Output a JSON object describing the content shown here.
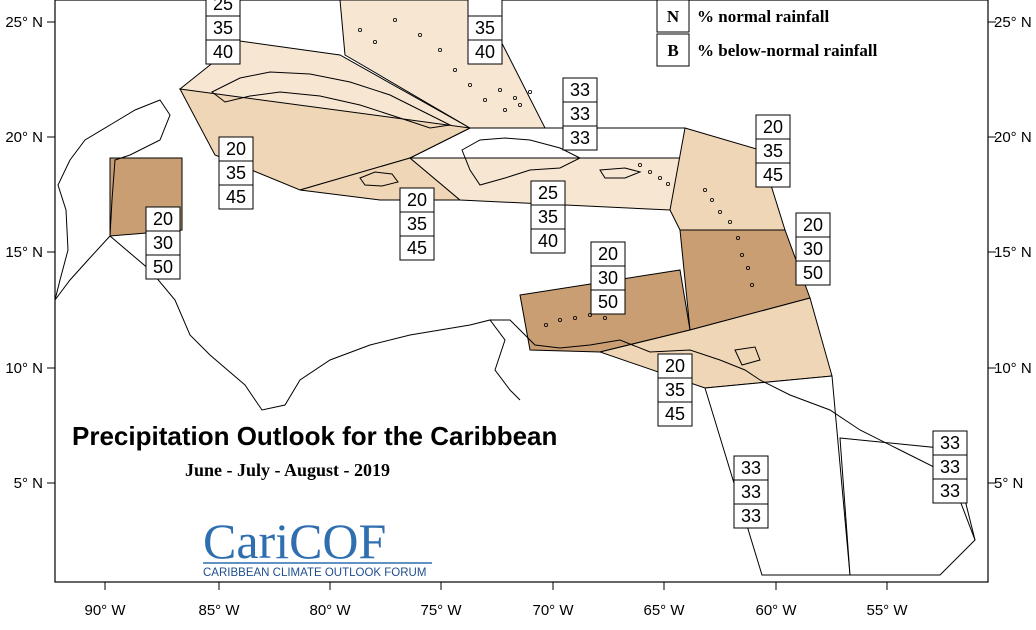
{
  "map": {
    "title": "Precipitation Outlook for the Caribbean",
    "subtitle": "June - July - August - 2019",
    "logo": {
      "name": "CariCOF",
      "subtitle": "CARIBBEAN CLIMATE OUTLOOK FORUM"
    },
    "legend": [
      {
        "key": "N",
        "label": "% normal rainfall"
      },
      {
        "key": "B",
        "label": "% below-normal rainfall"
      }
    ],
    "lon_labels": [
      "90° W",
      "85° W",
      "80° W",
      "75° W",
      "70° W",
      "65° W",
      "60° W",
      "55° W"
    ],
    "lat_labels": [
      "25° N",
      "20° N",
      "15° N",
      "10° N",
      "5° N"
    ],
    "colors": {
      "zone_pale": "#f6e6d2",
      "zone_light": "#efd6b6",
      "zone_medium": "#e3c29c",
      "zone_dark": "#c99e73"
    },
    "forecasts": [
      {
        "id": "bahamas-west",
        "values": [
          "25",
          "35",
          "40"
        ]
      },
      {
        "id": "bahamas-east",
        "values": [
          "",
          "35",
          "40"
        ]
      },
      {
        "id": "turks-caicos",
        "values": [
          "33",
          "33",
          "33"
        ]
      },
      {
        "id": "cuba",
        "values": [
          "20",
          "35",
          "45"
        ]
      },
      {
        "id": "belize",
        "values": [
          "20",
          "30",
          "50"
        ]
      },
      {
        "id": "jamaica",
        "values": [
          "20",
          "35",
          "45"
        ]
      },
      {
        "id": "hispaniola",
        "values": [
          "25",
          "35",
          "40"
        ]
      },
      {
        "id": "leeward-islands",
        "values": [
          "20",
          "35",
          "45"
        ]
      },
      {
        "id": "windward-islands",
        "values": [
          "20",
          "30",
          "50"
        ]
      },
      {
        "id": "abc-islands",
        "values": [
          "20",
          "30",
          "50"
        ]
      },
      {
        "id": "trinidad",
        "values": [
          "20",
          "35",
          "45"
        ]
      },
      {
        "id": "guyana",
        "values": [
          "33",
          "33",
          "33"
        ]
      },
      {
        "id": "suriname-guiana",
        "values": [
          "33",
          "33",
          "33"
        ]
      }
    ]
  }
}
